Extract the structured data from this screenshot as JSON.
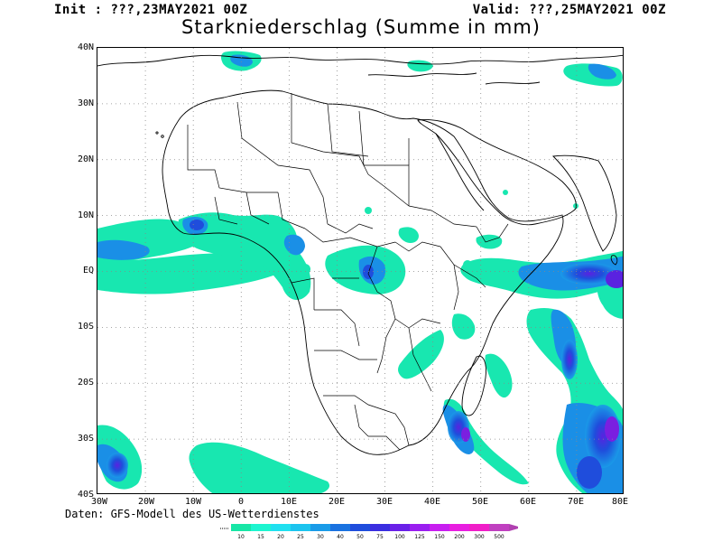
{
  "header": {
    "init": "Init : ???,23MAY2021 00Z",
    "valid": "Valid: ???,25MAY2021 00Z",
    "title": "Starkniederschlag (Summe in mm)"
  },
  "axes": {
    "lat_labels": [
      "40N",
      "30N",
      "20N",
      "10N",
      "EQ",
      "10S",
      "20S",
      "30S",
      "40S"
    ],
    "lon_labels": [
      "30W",
      "20W",
      "10W",
      "0",
      "10E",
      "20E",
      "30E",
      "40E",
      "50E",
      "60E",
      "70E",
      "80E"
    ],
    "lat_range": [
      -40,
      40
    ],
    "lon_range": [
      -30,
      80
    ],
    "grid": "dotted"
  },
  "credit": "Daten: GFS-Modell des US-Wetterdienstes",
  "legend": {
    "labels": [
      "10",
      "15",
      "20",
      "25",
      "30",
      "40",
      "50",
      "75",
      "100",
      "125",
      "150",
      "200",
      "300",
      "500"
    ],
    "colors": [
      "#17e6a6",
      "#1df5d0",
      "#20e0f0",
      "#1cc4ef",
      "#1a9be8",
      "#1a72e0",
      "#1f4ddc",
      "#3a2ee0",
      "#6a20e8",
      "#9a1ef0",
      "#c81ef0",
      "#e81ee0",
      "#f01ec8",
      "#c040c0"
    ]
  },
  "map": {
    "projection": "cylindrical",
    "precip_regions": [
      "equatorial Atlantic / West Africa coast",
      "Congo basin / Lake Victoria",
      "western Indian Ocean near 10N",
      "southeast Madagascar",
      "southern Indian Ocean",
      "South Atlantic near 30S",
      "Mediterranean"
    ]
  }
}
